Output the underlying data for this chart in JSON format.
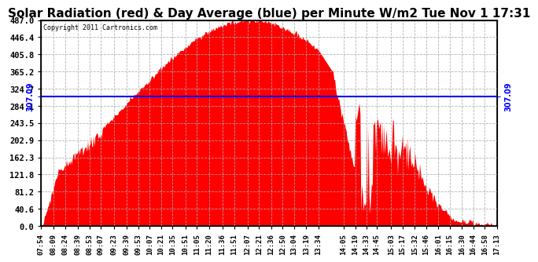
{
  "title": "Solar Radiation (red) & Day Average (blue) per Minute W/m2 Tue Nov 1 17:31",
  "copyright": "Copyright 2011 Cartronics.com",
  "day_average": 307.09,
  "y_max": 487.0,
  "y_min": 0.0,
  "y_ticks": [
    0.0,
    40.6,
    81.2,
    121.8,
    162.3,
    202.9,
    243.5,
    284.1,
    324.7,
    365.2,
    405.8,
    446.4,
    487.0
  ],
  "x_ticks": [
    "07:54",
    "08:09",
    "08:24",
    "08:39",
    "08:53",
    "09:07",
    "09:23",
    "09:39",
    "09:53",
    "10:07",
    "10:21",
    "10:35",
    "10:51",
    "11:05",
    "11:20",
    "11:36",
    "11:51",
    "12:07",
    "12:21",
    "12:36",
    "12:50",
    "13:04",
    "13:19",
    "13:34",
    "14:05",
    "14:19",
    "14:33",
    "14:45",
    "15:03",
    "15:17",
    "15:32",
    "15:46",
    "16:01",
    "16:15",
    "16:30",
    "16:44",
    "16:58",
    "17:13"
  ],
  "area_color": "red",
  "line_color": "blue",
  "grid_color": "#aaaaaa",
  "background_color": "white",
  "title_fontsize": 11
}
